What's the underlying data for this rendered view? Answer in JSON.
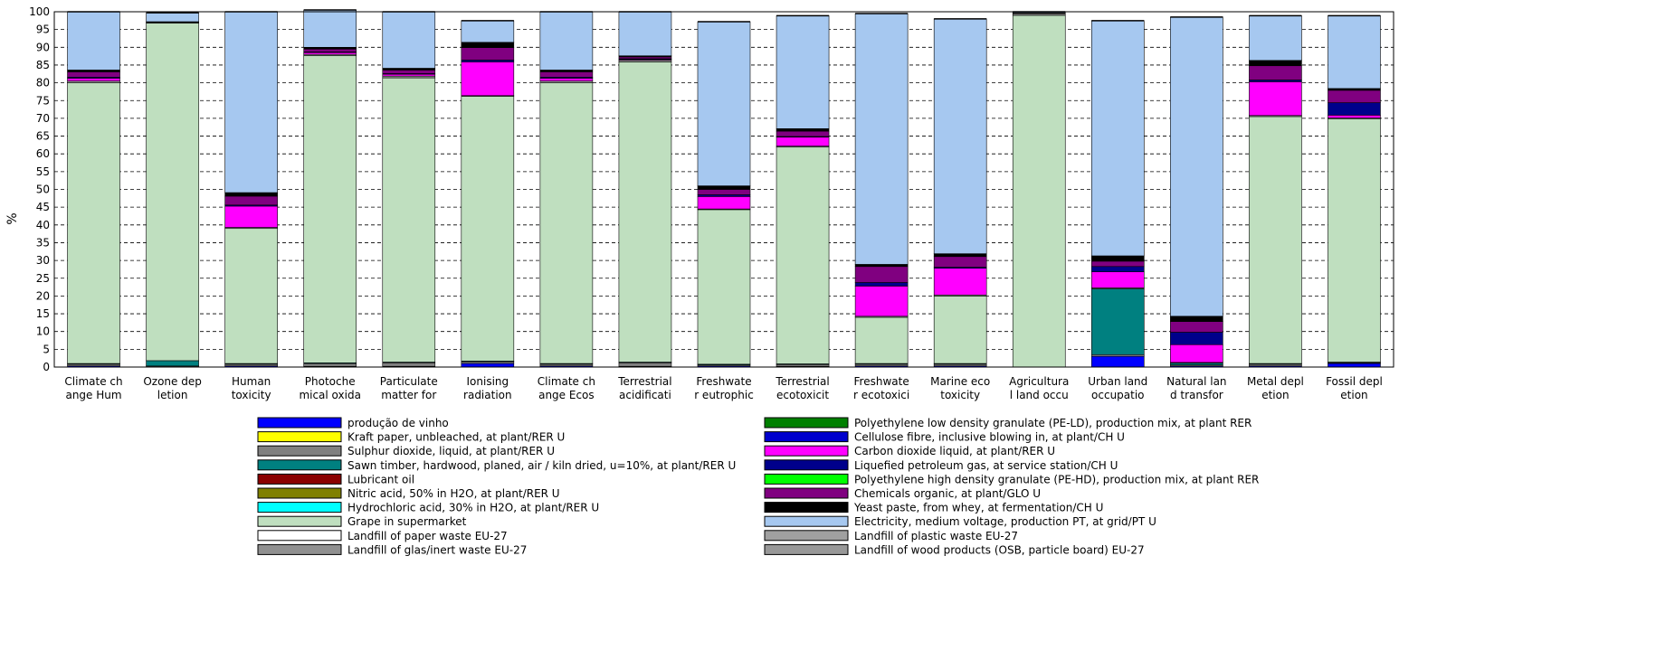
{
  "chart_data": {
    "type": "bar",
    "stacked": true,
    "ylabel": "%",
    "ylim": [
      0,
      100
    ],
    "ytick_step": 5,
    "grid": "horizontal dashed",
    "legend_position": "bottom",
    "categories": [
      [
        "Climate ch",
        "ange Hum"
      ],
      [
        "Ozone dep",
        "letion"
      ],
      [
        "Human",
        "toxicity"
      ],
      [
        "Photoche",
        "mical oxida"
      ],
      [
        "Particulate",
        "matter for"
      ],
      [
        "Ionising",
        "radiation"
      ],
      [
        "Climate ch",
        "ange Ecos"
      ],
      [
        "Terrestrial",
        "acidificati"
      ],
      [
        "Freshwate",
        "r eutrophic"
      ],
      [
        "Terrestrial",
        "ecotoxicit"
      ],
      [
        "Freshwate",
        "r ecotoxici"
      ],
      [
        "Marine eco",
        "toxicity"
      ],
      [
        "Agricultura",
        "l land occu"
      ],
      [
        "Urban land",
        "occupatio"
      ],
      [
        "Natural lan",
        "d transfor"
      ],
      [
        "Metal depl",
        "etion"
      ],
      [
        "Fossil depl",
        "etion"
      ]
    ],
    "series": [
      {
        "name": "produção de vinho",
        "color": "#0000ff",
        "values": [
          0.3,
          0.1,
          0.3,
          0.2,
          0.2,
          1,
          0.3,
          0.2,
          0.3,
          0.2,
          0.3,
          0.3,
          0,
          3,
          0.3,
          0.3,
          1
        ]
      },
      {
        "name": "Kraft paper, unbleached, at plant/RER U",
        "color": "#ffff00",
        "values": [
          0,
          0,
          0,
          0,
          0,
          0,
          0,
          0,
          0,
          0,
          0,
          0,
          0,
          0,
          0,
          0,
          0
        ]
      },
      {
        "name": "Sulphur dioxide, liquid, at plant/RER U",
        "color": "#808080",
        "values": [
          0.5,
          0.2,
          0.5,
          0.8,
          1,
          0.5,
          0.5,
          1,
          0.3,
          0.5,
          0.5,
          0.5,
          0,
          0.5,
          0.3,
          0.5,
          0.2
        ]
      },
      {
        "name": "Sawn timber, hardwood, planed, air / kiln dried, u=10%, at plant/RER U",
        "color": "#008080",
        "values": [
          0.2,
          1.5,
          0.2,
          0.2,
          0.2,
          0.2,
          0.2,
          0.2,
          0.2,
          0.2,
          0.2,
          0.2,
          0,
          18.5,
          0.5,
          0.2,
          0.2
        ]
      },
      {
        "name": "Lubricant oil",
        "color": "#8b0000",
        "values": [
          0,
          0,
          0,
          0,
          0,
          0,
          0,
          0,
          0,
          0,
          0,
          0,
          0,
          0,
          0,
          0,
          0
        ]
      },
      {
        "name": "Nitric acid, 50% in H2O, at plant/RER U",
        "color": "#808000",
        "values": [
          0,
          0,
          0,
          0,
          0,
          0,
          0,
          0,
          0,
          0,
          0,
          0,
          0,
          0,
          0,
          0,
          0
        ]
      },
      {
        "name": "Hydrochloric acid, 30% in H2O, at plant/RER U",
        "color": "#00ffff",
        "values": [
          0,
          0,
          0,
          0,
          0,
          0,
          0,
          0,
          0,
          0,
          0,
          0,
          0,
          0,
          0,
          0,
          0
        ]
      },
      {
        "name": "Grape in supermarket",
        "color": "#bfdfbf",
        "values": [
          79,
          95,
          38,
          86.5,
          80,
          74.5,
          79,
          84.5,
          43.5,
          61,
          13,
          19,
          99,
          0,
          0,
          69.5,
          68.5
        ]
      },
      {
        "name": "Landfill of paper waste EU-27",
        "color": "#ffffff",
        "values": [
          0,
          0,
          0,
          0,
          0,
          0,
          0,
          0,
          0,
          0,
          0,
          0,
          0,
          0,
          0,
          0,
          0
        ]
      },
      {
        "name": "Landfill of glas/inert waste EU-27",
        "color": "#909090",
        "values": [
          0.5,
          0.2,
          0.3,
          0.3,
          0.5,
          0.2,
          0.5,
          0.5,
          0.2,
          0.3,
          0.3,
          0.3,
          0.5,
          0.3,
          0.2,
          0.3,
          0.2
        ]
      },
      {
        "name": "Polyethylene low density granulate (PE-LD), production mix, at plant RER",
        "color": "#008000",
        "values": [
          0,
          0,
          0,
          0,
          0,
          0,
          0,
          0,
          0,
          0,
          0,
          0,
          0,
          0,
          0,
          0,
          0
        ]
      },
      {
        "name": "Cellulose fibre, inclusive blowing in, at plant/CH U",
        "color": "#0000cd",
        "values": [
          0,
          0,
          0,
          0,
          0,
          0,
          0,
          0,
          0,
          0,
          0,
          0,
          0,
          0,
          0,
          0,
          0
        ]
      },
      {
        "name": "Carbon dioxide liquid, at plant/RER U",
        "color": "#ff00ff",
        "values": [
          0.8,
          0,
          6,
          0.5,
          0.5,
          9.5,
          0.8,
          0.2,
          3.5,
          2.5,
          8.5,
          7.5,
          0,
          4.5,
          5,
          9.5,
          0.8
        ]
      },
      {
        "name": "Liquefied petroleum gas, at service station/CH U",
        "color": "#00008b",
        "values": [
          0.3,
          0,
          0.3,
          0.2,
          0.2,
          0.5,
          0.3,
          0.2,
          0.5,
          0.2,
          1,
          0.3,
          0,
          1.5,
          3.5,
          0.5,
          3.5
        ]
      },
      {
        "name": "Polyethylene high density granulate (PE-HD), production mix, at plant RER",
        "color": "#00ff00",
        "values": [
          0,
          0,
          0,
          0,
          0,
          0,
          0,
          0,
          0,
          0,
          0,
          0,
          0,
          0,
          0,
          0,
          0
        ]
      },
      {
        "name": "Chemicals organic, at plant/GLO U",
        "color": "#800080",
        "values": [
          1.5,
          0,
          2.5,
          0.8,
          1,
          3.5,
          1.5,
          0.5,
          1.5,
          1.5,
          4.5,
          3,
          0,
          1.5,
          3,
          4,
          3.5
        ]
      },
      {
        "name": "Yeast paste, from whey, at fermentation/CH U",
        "color": "#000000",
        "values": [
          0.5,
          0.2,
          1,
          0.5,
          0.5,
          1.5,
          0.5,
          0.3,
          1,
          0.7,
          0.6,
          0.8,
          0.2,
          1.5,
          1.5,
          1.5,
          0.5
        ]
      },
      {
        "name": "Electricity, medium voltage, production PT, at grid/PT U",
        "color": "#a6c8f0",
        "values": [
          16.4,
          2.5,
          50.9,
          10.5,
          15.9,
          6.1,
          16.4,
          12.4,
          46.2,
          31.8,
          70.6,
          66.1,
          0.3,
          66.2,
          84.2,
          12.6,
          20.5
        ]
      },
      {
        "name": "Landfill of plastic waste EU-27",
        "color": "#a0a0a0",
        "values": [
          0,
          0,
          0,
          0,
          0,
          0,
          0,
          0,
          0,
          0,
          0,
          0,
          0,
          0,
          0,
          0,
          0
        ]
      },
      {
        "name": "Landfill of wood products (OSB, particle board) EU-27",
        "color": "#989898",
        "values": [
          0,
          0,
          0,
          0,
          0,
          0,
          0,
          0,
          0,
          0,
          0,
          0,
          0,
          0,
          0,
          0,
          0
        ]
      }
    ]
  }
}
